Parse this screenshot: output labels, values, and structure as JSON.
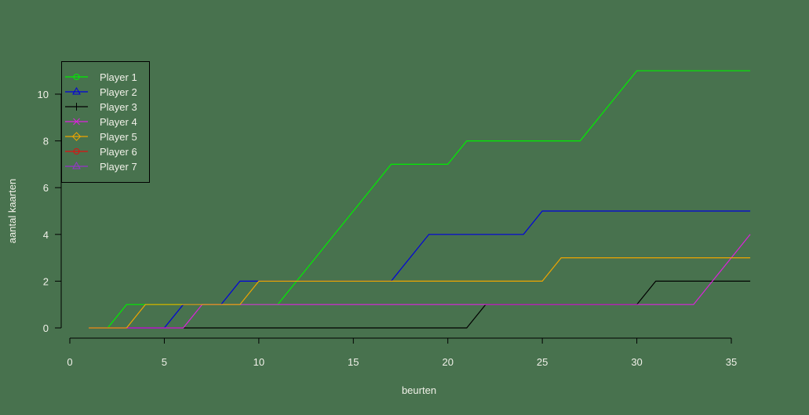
{
  "background": "#48724e",
  "chart_data": {
    "type": "line",
    "title": "",
    "xlabel": "beurten",
    "ylabel": "aantal kaarten",
    "xlim": [
      0,
      36
    ],
    "ylim": [
      0,
      11
    ],
    "x_ticks": [
      0,
      5,
      10,
      15,
      20,
      25,
      30,
      35
    ],
    "y_ticks": [
      0,
      2,
      4,
      6,
      8,
      10
    ],
    "grid": false,
    "legend_position": "top-left",
    "x": [
      1,
      2,
      3,
      4,
      5,
      6,
      7,
      8,
      9,
      10,
      11,
      12,
      13,
      14,
      15,
      16,
      17,
      18,
      19,
      20,
      21,
      22,
      23,
      24,
      25,
      26,
      27,
      28,
      29,
      30,
      31,
      32,
      33,
      34,
      35,
      36
    ],
    "series": [
      {
        "name": "Player 1",
        "color": "#00ee00",
        "marker": "circle",
        "values": [
          0,
          0,
          1,
          1,
          1,
          1,
          1,
          1,
          1,
          1,
          1,
          2,
          3,
          4,
          5,
          6,
          7,
          7,
          7,
          7,
          8,
          8,
          8,
          8,
          8,
          8,
          8,
          9,
          10,
          11,
          11,
          11,
          11,
          11,
          11,
          11
        ]
      },
      {
        "name": "Player 2",
        "color": "#0000dd",
        "marker": "triangle",
        "values": [
          0,
          0,
          0,
          0,
          0,
          1,
          1,
          1,
          2,
          2,
          2,
          2,
          2,
          2,
          2,
          2,
          2,
          3,
          4,
          4,
          4,
          4,
          4,
          4,
          5,
          5,
          5,
          5,
          5,
          5,
          5,
          5,
          5,
          5,
          5,
          5
        ]
      },
      {
        "name": "Player 3",
        "color": "#000000",
        "marker": "plus",
        "values": [
          0,
          0,
          0,
          0,
          0,
          0,
          0,
          0,
          0,
          0,
          0,
          0,
          0,
          0,
          0,
          0,
          0,
          0,
          0,
          0,
          0,
          1,
          1,
          1,
          1,
          1,
          1,
          1,
          1,
          1,
          2,
          2,
          2,
          2,
          2,
          2
        ]
      },
      {
        "name": "Player 4",
        "color": "#dd22dd",
        "marker": "cross",
        "values": [
          0,
          0,
          0,
          0,
          0,
          0,
          1,
          1,
          1,
          1,
          1,
          1,
          1,
          1,
          1,
          1,
          1,
          1,
          1,
          1,
          1,
          1,
          1,
          1,
          1,
          1,
          1,
          1,
          1,
          1,
          1,
          1,
          1,
          2,
          3,
          4
        ]
      },
      {
        "name": "Player 5",
        "color": "#eea500",
        "marker": "diamond",
        "values": [
          0,
          0,
          0,
          1,
          1,
          1,
          1,
          1,
          1,
          2,
          2,
          2,
          2,
          2,
          2,
          2,
          2,
          2,
          2,
          2,
          2,
          2,
          2,
          2,
          2,
          3,
          3,
          3,
          3,
          3,
          3,
          3,
          3,
          3,
          3,
          3
        ]
      },
      {
        "name": "Player 6",
        "color": "#dd1111",
        "marker": "circle",
        "values": []
      },
      {
        "name": "Player 7",
        "color": "#9933cc",
        "marker": "triangle",
        "values": []
      }
    ]
  }
}
